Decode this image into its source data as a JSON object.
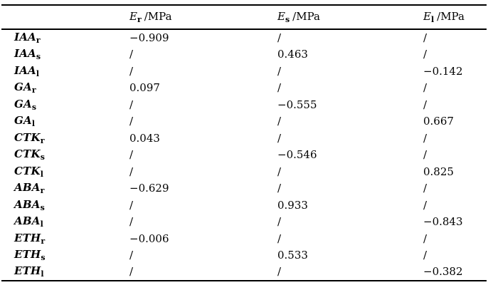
{
  "page": {
    "background": "#ffffff",
    "text_color": "#000000"
  },
  "table": {
    "headers": [
      {
        "symbol": "E",
        "subscript": "r",
        "unit": "/MPa"
      },
      {
        "symbol": "E",
        "subscript": "s",
        "unit": "/MPa"
      },
      {
        "symbol": "E",
        "subscript": "l",
        "unit": "/MPa"
      }
    ],
    "rows": [
      {
        "label": "IAA",
        "subscript": "r",
        "values": [
          "−0.909",
          "/",
          "/"
        ]
      },
      {
        "label": "IAA",
        "subscript": "s",
        "values": [
          "/",
          "0.463",
          "/"
        ]
      },
      {
        "label": "IAA",
        "subscript": "l",
        "values": [
          "/",
          "/",
          "−0.142"
        ]
      },
      {
        "label": "GA",
        "subscript": "r",
        "values": [
          "0.097",
          "/",
          "/"
        ]
      },
      {
        "label": "GA",
        "subscript": "s",
        "values": [
          "/",
          "−0.555",
          "/"
        ]
      },
      {
        "label": "GA",
        "subscript": "l",
        "values": [
          "/",
          "/",
          "0.667"
        ]
      },
      {
        "label": "CTK",
        "subscript": "r",
        "values": [
          "0.043",
          "/",
          "/"
        ]
      },
      {
        "label": "CTK",
        "subscript": "s",
        "values": [
          "/",
          "−0.546",
          "/"
        ]
      },
      {
        "label": "CTK",
        "subscript": "l",
        "values": [
          "/",
          "/",
          "0.825"
        ]
      },
      {
        "label": "ABA",
        "subscript": "r",
        "values": [
          "−0.629",
          "/",
          "/"
        ]
      },
      {
        "label": "ABA",
        "subscript": "s",
        "values": [
          "/",
          "0.933",
          "/"
        ]
      },
      {
        "label": "ABA",
        "subscript": "l",
        "values": [
          "/",
          "/",
          "−0.843"
        ]
      },
      {
        "label": "ETH",
        "subscript": "r",
        "values": [
          "−0.006",
          "/",
          "/"
        ]
      },
      {
        "label": "ETH",
        "subscript": "s",
        "values": [
          "/",
          "0.533",
          "/"
        ]
      },
      {
        "label": "ETH",
        "subscript": "l",
        "values": [
          "/",
          "/",
          "−0.382"
        ]
      }
    ]
  },
  "chart_data": {
    "type": "table",
    "columns": [
      "",
      "E_r /MPa",
      "E_s /MPa",
      "E_l /MPa"
    ],
    "rows": [
      [
        "IAA_r",
        -0.909,
        null,
        null
      ],
      [
        "IAA_s",
        null,
        0.463,
        null
      ],
      [
        "IAA_l",
        null,
        null,
        -0.142
      ],
      [
        "GA_r",
        0.097,
        null,
        null
      ],
      [
        "GA_s",
        null,
        -0.555,
        null
      ],
      [
        "GA_l",
        null,
        null,
        0.667
      ],
      [
        "CTK_r",
        0.043,
        null,
        null
      ],
      [
        "CTK_s",
        null,
        -0.546,
        null
      ],
      [
        "CTK_l",
        null,
        null,
        0.825
      ],
      [
        "ABA_r",
        -0.629,
        null,
        null
      ],
      [
        "ABA_s",
        null,
        0.933,
        null
      ],
      [
        "ABA_l",
        null,
        null,
        -0.843
      ],
      [
        "ETH_r",
        -0.006,
        null,
        null
      ],
      [
        "ETH_s",
        null,
        0.533,
        null
      ],
      [
        "ETH_l",
        null,
        null,
        -0.382
      ]
    ],
    "missing_value_marker": "/"
  }
}
